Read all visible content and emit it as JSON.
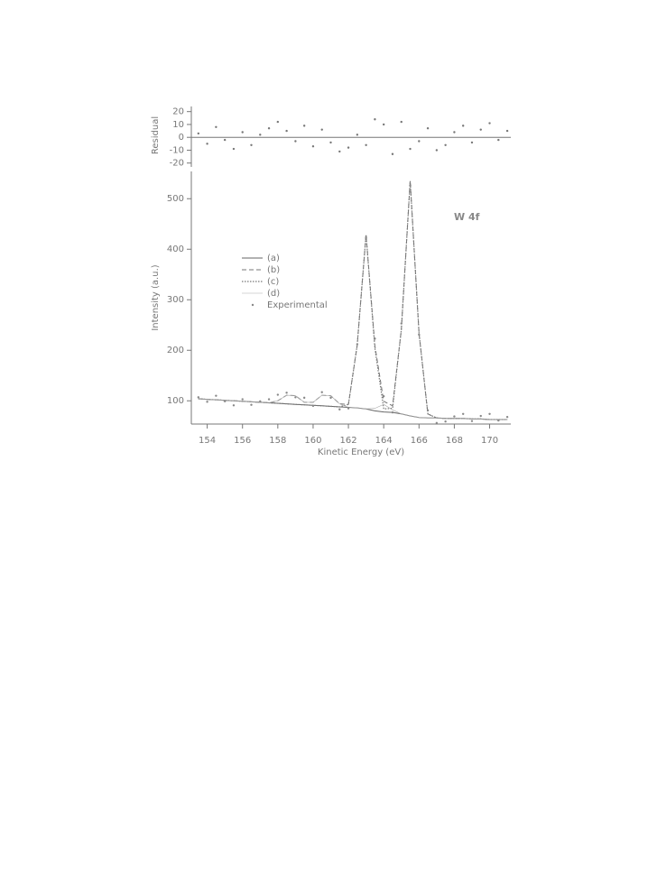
{
  "chart_data": [
    {
      "type": "scatter",
      "ylabel": "Residual",
      "color": "#777777",
      "x": [
        153.5,
        154,
        154.5,
        155,
        155.5,
        156,
        156.5,
        157,
        157.5,
        158,
        158.5,
        159,
        159.5,
        160,
        160.5,
        161,
        161.5,
        162,
        162.5,
        163,
        163.5,
        164,
        164.5,
        165,
        165.5,
        166,
        166.5,
        167,
        167.5,
        168,
        168.5,
        169,
        169.5,
        170,
        170.5,
        171
      ],
      "values": [
        3,
        -5,
        8,
        -2,
        -9,
        4,
        -6,
        2,
        7,
        12,
        5,
        -3,
        9,
        -7,
        6,
        -4,
        -11,
        -8,
        2,
        -6,
        14,
        10,
        -13,
        12,
        -9,
        -3,
        7,
        -10,
        -6,
        4,
        9,
        -4,
        6,
        11,
        -2,
        5
      ],
      "xlim": [
        153.1,
        171.2
      ],
      "ylim": [
        -23,
        24
      ],
      "yticks": [
        -20,
        -10,
        0,
        10,
        20
      ]
    },
    {
      "type": "line",
      "xlabel": "Kinetic Energy (eV)",
      "ylabel": "Intensity (a.u.)",
      "annotation": "W 4f",
      "x": [
        153.5,
        154,
        154.5,
        155,
        155.5,
        156,
        156.5,
        157,
        157.5,
        158,
        158.5,
        159,
        159.5,
        160,
        160.5,
        161,
        161.5,
        162,
        162.5,
        163,
        163.5,
        164,
        164.5,
        165,
        165.5,
        166,
        166.5,
        167,
        167.5,
        168,
        168.5,
        169,
        169.5,
        170,
        170.5,
        171
      ],
      "series": [
        {
          "name": "(a)",
          "color": "#666666",
          "style": "solid",
          "values": [
            104,
            103,
            102,
            101,
            100,
            99,
            98,
            97,
            96,
            95,
            94,
            93,
            92,
            91,
            90,
            89,
            88,
            87,
            86,
            84,
            80,
            78,
            77,
            74,
            70,
            67,
            66,
            66,
            65,
            65,
            65,
            64,
            64,
            63,
            63,
            63
          ]
        },
        {
          "name": "(b)",
          "color": "#777777",
          "style": "dashed",
          "values": [
            104,
            103,
            102,
            101,
            100,
            99,
            98,
            97,
            96,
            100,
            111,
            110,
            97,
            97,
            111,
            110,
            94,
            93,
            210,
            429,
            209,
            99,
            90,
            241,
            535,
            234,
            74,
            66,
            65,
            65,
            65,
            64,
            64,
            63,
            63,
            63
          ]
        },
        {
          "name": "(c)",
          "color": "#777777",
          "style": "dotted",
          "values": [
            104,
            103,
            102,
            101,
            100,
            99,
            98,
            97,
            96,
            95,
            94,
            93,
            92,
            91,
            90,
            89,
            88,
            93,
            210,
            429,
            204,
            84,
            85,
            241,
            535,
            234,
            74,
            66,
            65,
            65,
            65,
            64,
            64,
            63,
            63,
            63
          ]
        },
        {
          "name": "(d)",
          "color": "#aaaaaa",
          "style": "thin",
          "values": [
            104,
            103,
            102,
            101,
            100,
            99,
            98,
            97,
            96,
            100,
            111,
            110,
            97,
            97,
            111,
            110,
            94,
            87,
            86,
            84,
            85,
            93,
            82,
            74,
            70,
            67,
            66,
            66,
            65,
            65,
            65,
            64,
            64,
            63,
            63,
            63
          ]
        },
        {
          "name": "Experimental",
          "color": "#888888",
          "style": "points",
          "values": [
            107,
            98,
            110,
            99,
            91,
            103,
            92,
            99,
            103,
            112,
            116,
            107,
            106,
            90,
            117,
            106,
            83,
            85,
            212,
            423,
            223,
            109,
            77,
            253,
            526,
            231,
            81,
            56,
            59,
            69,
            74,
            60,
            70,
            74,
            61,
            68
          ]
        }
      ],
      "xlim": [
        153.1,
        171.2
      ],
      "ylim": [
        54,
        554
      ],
      "xticks": [
        154,
        156,
        158,
        160,
        162,
        164,
        166,
        168,
        170
      ],
      "yticks": [
        100,
        200,
        300,
        400,
        500
      ]
    }
  ]
}
